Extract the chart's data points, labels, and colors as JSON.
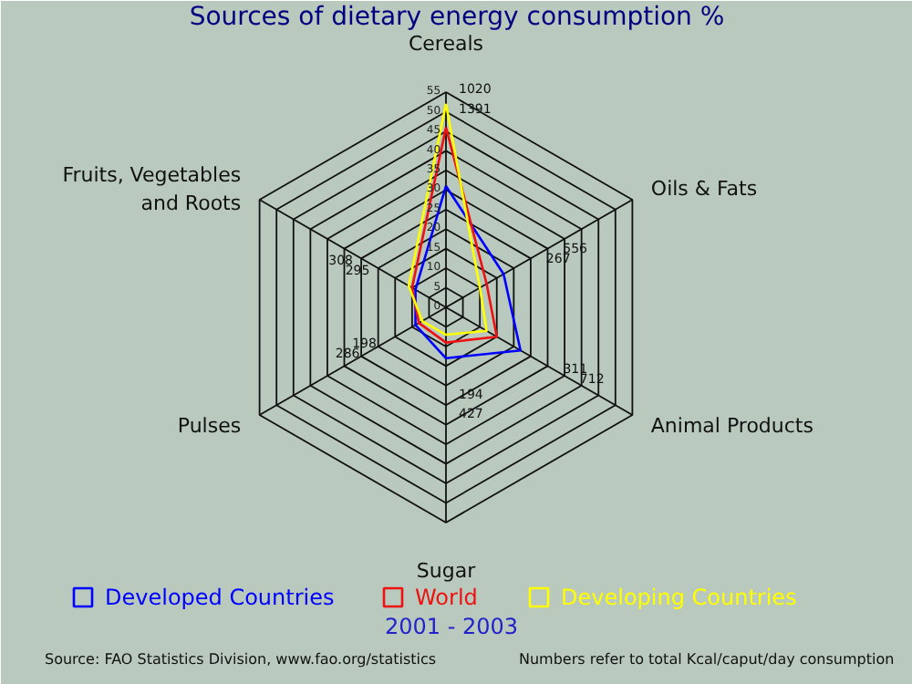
{
  "chart_data": {
    "type": "radar",
    "title": "Sources of dietary energy consumption %",
    "subtitle": "2001 - 2003",
    "categories": [
      "Cereals",
      "Oils & Fats",
      "Animal Products",
      "Sugar",
      "Pulses",
      "Fruits, Vegetables and Roots"
    ],
    "ylim": [
      0,
      55
    ],
    "yticks": [
      0,
      5,
      10,
      15,
      20,
      25,
      30,
      35,
      40,
      45,
      50,
      55
    ],
    "grid": true,
    "legend": "bottom",
    "series": [
      {
        "name": "Developed Countries",
        "color": "#0000ff",
        "values": [
          31,
          17,
          22,
          13,
          9,
          9
        ]
      },
      {
        "name": "World",
        "color": "#ee1111",
        "values": [
          46,
          12,
          15,
          9,
          8,
          10
        ]
      },
      {
        "name": "Developing Countries",
        "color": "#ffff00",
        "values": [
          52,
          10,
          12,
          7,
          7,
          11
        ]
      }
    ],
    "annotations": [
      {
        "text": "1391",
        "x": "Cereals"
      },
      {
        "text": "1020",
        "x": "Cereals"
      },
      {
        "text": "267",
        "x": "Oils & Fats"
      },
      {
        "text": "556",
        "x": "Oils & Fats"
      },
      {
        "text": "311",
        "x": "Animal Products"
      },
      {
        "text": "712",
        "x": "Animal Products"
      },
      {
        "text": "194",
        "x": "Sugar"
      },
      {
        "text": "427",
        "x": "Sugar"
      },
      {
        "text": "198",
        "x": "Pulses"
      },
      {
        "text": "286",
        "x": "Pulses"
      },
      {
        "text": "295",
        "x": "Fruits, Vegetables and Roots"
      },
      {
        "text": "308",
        "x": "Fruits, Vegetables and Roots"
      },
      "Source: FAO Statistics Division, www.fao.org/statistics",
      "Numbers refer to total Kcal/caput/day consumption"
    ]
  }
}
